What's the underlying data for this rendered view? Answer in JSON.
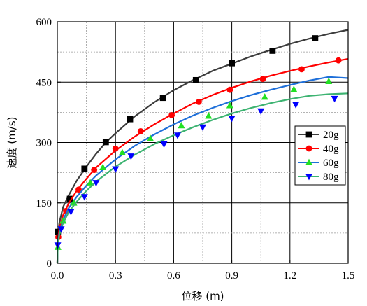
{
  "chart_data": {
    "type": "line",
    "xlabel": "位移 (m)",
    "ylabel": "速度 (m/s)",
    "xlim": [
      0,
      1.5
    ],
    "ylim": [
      0,
      600
    ],
    "x_ticks": [
      "0.0",
      "0.3",
      "0.6",
      "0.9",
      "1.2",
      "1.5"
    ],
    "y_ticks": [
      "0",
      "150",
      "300",
      "450",
      "600"
    ],
    "x_tick_values": [
      0,
      0.3,
      0.6,
      0.9,
      1.2,
      1.5
    ],
    "y_tick_values": [
      0,
      150,
      300,
      450,
      600
    ],
    "grid": true,
    "legend_position": "right",
    "series": [
      {
        "name": "20g",
        "color": "#3c3c3c",
        "marker": "square",
        "line": [
          [
            0,
            0
          ],
          [
            0.002,
            60
          ],
          [
            0.01,
            100
          ],
          [
            0.03,
            140
          ],
          [
            0.06,
            170
          ],
          [
            0.1,
            205
          ],
          [
            0.15,
            240
          ],
          [
            0.2,
            272
          ],
          [
            0.25,
            300
          ],
          [
            0.3,
            323
          ],
          [
            0.4,
            365
          ],
          [
            0.5,
            400
          ],
          [
            0.6,
            430
          ],
          [
            0.7,
            455
          ],
          [
            0.8,
            478
          ],
          [
            0.9,
            496
          ],
          [
            1.0,
            514
          ],
          [
            1.1,
            530
          ],
          [
            1.2,
            545
          ],
          [
            1.3,
            558
          ],
          [
            1.4,
            570
          ],
          [
            1.5,
            580
          ]
        ],
        "markers": [
          [
            0.003,
            78
          ],
          [
            0.065,
            160
          ],
          [
            0.14,
            235
          ],
          [
            0.25,
            301
          ],
          [
            0.375,
            358
          ],
          [
            0.545,
            411
          ],
          [
            0.715,
            455
          ],
          [
            0.9,
            497
          ],
          [
            1.11,
            528
          ],
          [
            1.33,
            559
          ]
        ]
      },
      {
        "name": "40g",
        "color": "#ff0000",
        "marker": "circle",
        "line": [
          [
            0,
            0
          ],
          [
            0.002,
            50
          ],
          [
            0.01,
            85
          ],
          [
            0.03,
            120
          ],
          [
            0.06,
            150
          ],
          [
            0.1,
            180
          ],
          [
            0.15,
            210
          ],
          [
            0.2,
            238
          ],
          [
            0.3,
            280
          ],
          [
            0.4,
            315
          ],
          [
            0.5,
            345
          ],
          [
            0.6,
            372
          ],
          [
            0.7,
            397
          ],
          [
            0.8,
            418
          ],
          [
            0.9,
            436
          ],
          [
            1.0,
            452
          ],
          [
            1.1,
            466
          ],
          [
            1.2,
            478
          ],
          [
            1.3,
            489
          ],
          [
            1.4,
            499
          ],
          [
            1.5,
            508
          ]
        ],
        "markers": [
          [
            0.005,
            65
          ],
          [
            0.045,
            130
          ],
          [
            0.11,
            183
          ],
          [
            0.19,
            232
          ],
          [
            0.3,
            285
          ],
          [
            0.43,
            328
          ],
          [
            0.59,
            368
          ],
          [
            0.73,
            401
          ],
          [
            0.89,
            431
          ],
          [
            1.06,
            458
          ],
          [
            1.26,
            482
          ],
          [
            1.45,
            504
          ]
        ]
      },
      {
        "name": "60g",
        "color": "#1e6fd9",
        "marker": "triangle-up",
        "line": [
          [
            0,
            0
          ],
          [
            0.002,
            45
          ],
          [
            0.01,
            75
          ],
          [
            0.03,
            108
          ],
          [
            0.06,
            138
          ],
          [
            0.1,
            165
          ],
          [
            0.15,
            193
          ],
          [
            0.2,
            218
          ],
          [
            0.3,
            258
          ],
          [
            0.4,
            292
          ],
          [
            0.5,
            320
          ],
          [
            0.6,
            345
          ],
          [
            0.7,
            367
          ],
          [
            0.8,
            386
          ],
          [
            0.9,
            403
          ],
          [
            1.0,
            418
          ],
          [
            1.1,
            431
          ],
          [
            1.2,
            443
          ],
          [
            1.3,
            454
          ],
          [
            1.4,
            463
          ],
          [
            1.5,
            460
          ]
        ],
        "markers": [
          [
            0.003,
            40
          ],
          [
            0.03,
            105
          ],
          [
            0.085,
            150
          ],
          [
            0.17,
            200
          ],
          [
            0.235,
            238
          ],
          [
            0.335,
            275
          ],
          [
            0.48,
            310
          ],
          [
            0.64,
            342
          ],
          [
            0.78,
            366
          ],
          [
            0.89,
            392
          ],
          [
            1.07,
            413
          ],
          [
            1.22,
            432
          ],
          [
            1.4,
            452
          ]
        ]
      },
      {
        "name": "80g",
        "color": "#3cb371",
        "marker": "triangle-down",
        "line": [
          [
            0,
            0
          ],
          [
            0.002,
            40
          ],
          [
            0.01,
            70
          ],
          [
            0.03,
            100
          ],
          [
            0.06,
            128
          ],
          [
            0.1,
            153
          ],
          [
            0.15,
            180
          ],
          [
            0.2,
            203
          ],
          [
            0.3,
            240
          ],
          [
            0.4,
            270
          ],
          [
            0.5,
            296
          ],
          [
            0.6,
            318
          ],
          [
            0.7,
            338
          ],
          [
            0.8,
            356
          ],
          [
            0.9,
            372
          ],
          [
            1.0,
            386
          ],
          [
            1.1,
            398
          ],
          [
            1.2,
            408
          ],
          [
            1.3,
            416
          ],
          [
            1.4,
            420
          ],
          [
            1.5,
            422
          ]
        ],
        "markers": [
          [
            0.002,
            45
          ],
          [
            0.02,
            85
          ],
          [
            0.07,
            128
          ],
          [
            0.14,
            165
          ],
          [
            0.2,
            200
          ],
          [
            0.3,
            234
          ],
          [
            0.38,
            266
          ],
          [
            0.55,
            296
          ],
          [
            0.62,
            318
          ],
          [
            0.75,
            338
          ],
          [
            0.9,
            360
          ],
          [
            1.05,
            378
          ],
          [
            1.23,
            394
          ],
          [
            1.43,
            409
          ]
        ]
      }
    ]
  }
}
